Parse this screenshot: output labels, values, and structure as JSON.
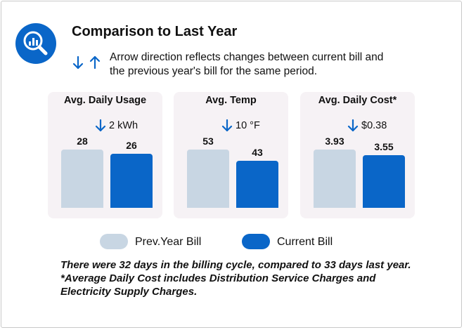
{
  "header": {
    "title": "Comparison to Last Year",
    "note_line1": "Arrow direction reflects changes between current bill and",
    "note_line2": "the previous year's bill for the same period."
  },
  "colors": {
    "prev": "#c8d6e3",
    "current": "#0a66c8",
    "card_bg": "#f6f2f5"
  },
  "legend": {
    "prev_label": "Prev.Year Bill",
    "current_label": "Current Bill"
  },
  "footer": {
    "line1": "There were 32 days in the billing cycle, compared to 33 days last year.",
    "line2": "*Average Daily Cost includes Distribution Service Charges and",
    "line3": "Electricity Supply Charges."
  },
  "chart_data": [
    {
      "type": "bar",
      "title": "Avg. Daily Usage",
      "change_direction": "down",
      "change_text": "2 kWh",
      "categories": [
        "Prev.Year Bill",
        "Current Bill"
      ],
      "values": [
        28,
        26
      ],
      "labels": [
        "28",
        "26"
      ]
    },
    {
      "type": "bar",
      "title": "Avg. Temp",
      "change_direction": "down",
      "change_text": "10 °F",
      "categories": [
        "Prev.Year Bill",
        "Current Bill"
      ],
      "values": [
        53,
        43
      ],
      "labels": [
        "53",
        "43"
      ]
    },
    {
      "type": "bar",
      "title": "Avg. Daily Cost*",
      "change_direction": "down",
      "change_text": "$0.38",
      "categories": [
        "Prev.Year Bill",
        "Current Bill"
      ],
      "values": [
        3.93,
        3.55
      ],
      "labels": [
        "3.93",
        "3.55"
      ]
    }
  ]
}
